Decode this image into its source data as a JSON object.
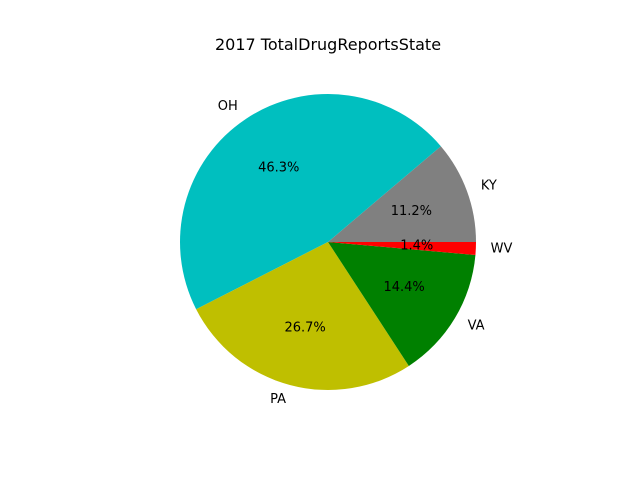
{
  "chart_data": {
    "type": "pie",
    "title": "2017 TotalDrugReportsState",
    "start_angle_deg": 0,
    "direction": "counterclockwise",
    "slices": [
      {
        "label": "KY",
        "percent": 11.2,
        "pct_label": "11.2%",
        "color": "#808080"
      },
      {
        "label": "OH",
        "percent": 46.3,
        "pct_label": "46.3%",
        "color": "#00bfbf"
      },
      {
        "label": "PA",
        "percent": 26.7,
        "pct_label": "26.7%",
        "color": "#bfbf00"
      },
      {
        "label": "VA",
        "percent": 14.4,
        "pct_label": "14.4%",
        "color": "#008000"
      },
      {
        "label": "WV",
        "percent": 1.4,
        "pct_label": "1.4%",
        "color": "#ff0000"
      }
    ]
  }
}
